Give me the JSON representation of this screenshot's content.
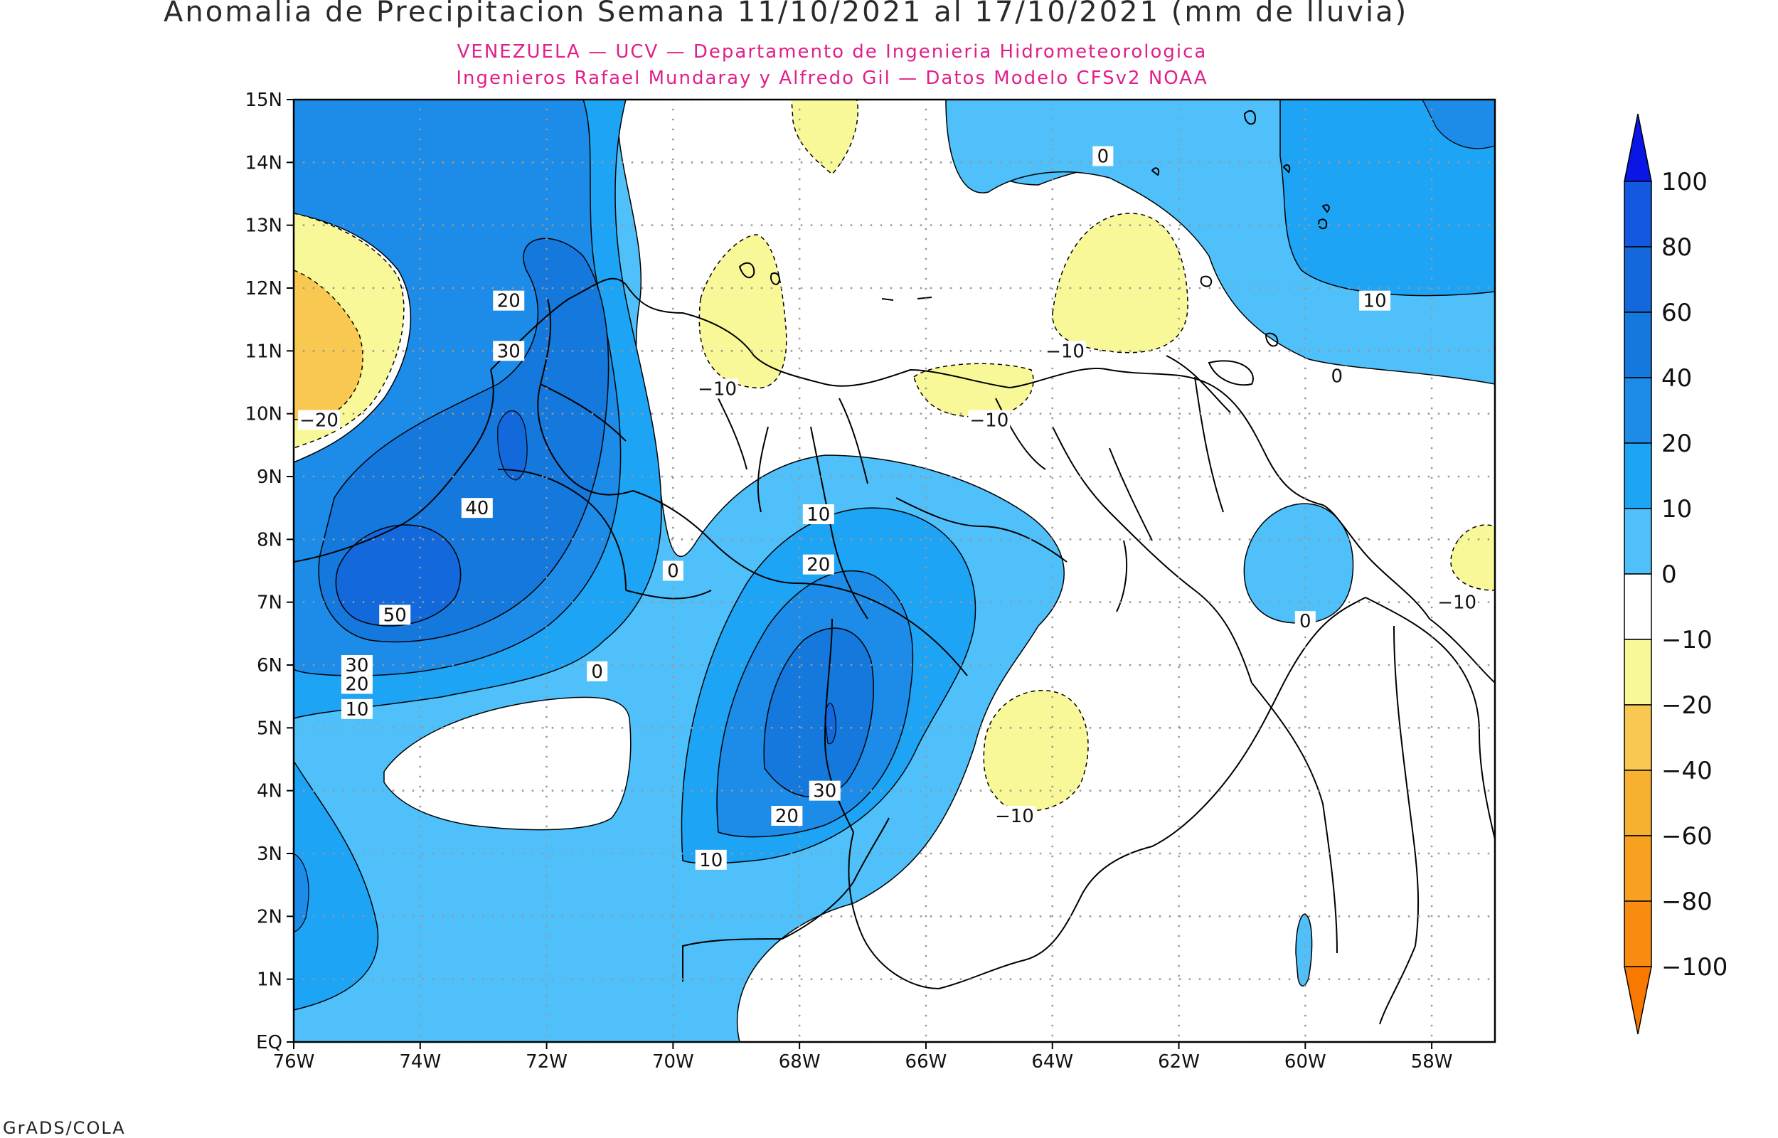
{
  "header": {
    "title": "Anomalia de Precipitacion Semana 11/10/2021 al 17/10/2021 (mm de lluvia)",
    "subtitle_line1": "VENEZUELA — UCV — Departamento de Ingenieria Hidrometeorologica",
    "subtitle_line2": "Ingenieros Rafael Mundaray y Alfredo Gil — Datos Modelo CFSv2 NOAA"
  },
  "map": {
    "lon_labels": [
      "76W",
      "74W",
      "72W",
      "70W",
      "68W",
      "66W",
      "64W",
      "62W",
      "60W",
      "58W"
    ],
    "lat_labels": [
      "EQ",
      "1N",
      "2N",
      "3N",
      "4N",
      "5N",
      "6N",
      "7N",
      "8N",
      "9N",
      "10N",
      "11N",
      "12N",
      "13N",
      "14N",
      "15N"
    ],
    "extent": {
      "lon_min": -76,
      "lon_max": -57,
      "lat_min": 0,
      "lat_max": 15
    },
    "contour_labels": [
      {
        "text": "0",
        "lon": -63.2,
        "lat": 14.1
      },
      {
        "text": "10",
        "lon": -58.9,
        "lat": 11.8
      },
      {
        "text": "0",
        "lon": -59.5,
        "lat": 10.6
      },
      {
        "text": "20",
        "lon": -72.6,
        "lat": 11.8
      },
      {
        "text": "30",
        "lon": -72.6,
        "lat": 11.0
      },
      {
        "text": "-20",
        "lon": -75.6,
        "lat": 9.9
      },
      {
        "text": "-10",
        "lon": -69.3,
        "lat": 10.4
      },
      {
        "text": "-10",
        "lon": -63.8,
        "lat": 11.0
      },
      {
        "text": "-10",
        "lon": -65.0,
        "lat": 9.9
      },
      {
        "text": "40",
        "lon": -73.1,
        "lat": 8.5
      },
      {
        "text": "10",
        "lon": -67.7,
        "lat": 8.4
      },
      {
        "text": "0",
        "lon": -70.0,
        "lat": 7.5
      },
      {
        "text": "20",
        "lon": -67.7,
        "lat": 7.6
      },
      {
        "text": "50",
        "lon": -74.4,
        "lat": 6.8
      },
      {
        "text": "-10",
        "lon": -57.6,
        "lat": 7.0
      },
      {
        "text": "0",
        "lon": -60.0,
        "lat": 6.7
      },
      {
        "text": "30",
        "lon": -75.0,
        "lat": 6.0
      },
      {
        "text": "0",
        "lon": -71.2,
        "lat": 5.9
      },
      {
        "text": "20",
        "lon": -75.0,
        "lat": 5.7
      },
      {
        "text": "10",
        "lon": -75.0,
        "lat": 5.3
      },
      {
        "text": "30",
        "lon": -67.6,
        "lat": 4.0
      },
      {
        "text": "20",
        "lon": -68.2,
        "lat": 3.6
      },
      {
        "text": "-10",
        "lon": -64.6,
        "lat": 3.6
      },
      {
        "text": "10",
        "lon": -69.4,
        "lat": 2.9
      }
    ]
  },
  "colorbar": {
    "levels": [
      "100",
      "80",
      "60",
      "40",
      "20",
      "10",
      "0",
      "−10",
      "−20",
      "−40",
      "−60",
      "−80",
      "−100"
    ],
    "colors_top_to_bottom": [
      "#0a16e6",
      "#1358e0",
      "#1368dc",
      "#1478dc",
      "#1c8ce8",
      "#1ea4f4",
      "#4fc0fa",
      "#ffffff",
      "#f8f898",
      "#f8c850",
      "#f8b030",
      "#f8a020",
      "#f88c10",
      "#f87800"
    ]
  },
  "footer": {
    "credit": "GrADS/COLA"
  }
}
